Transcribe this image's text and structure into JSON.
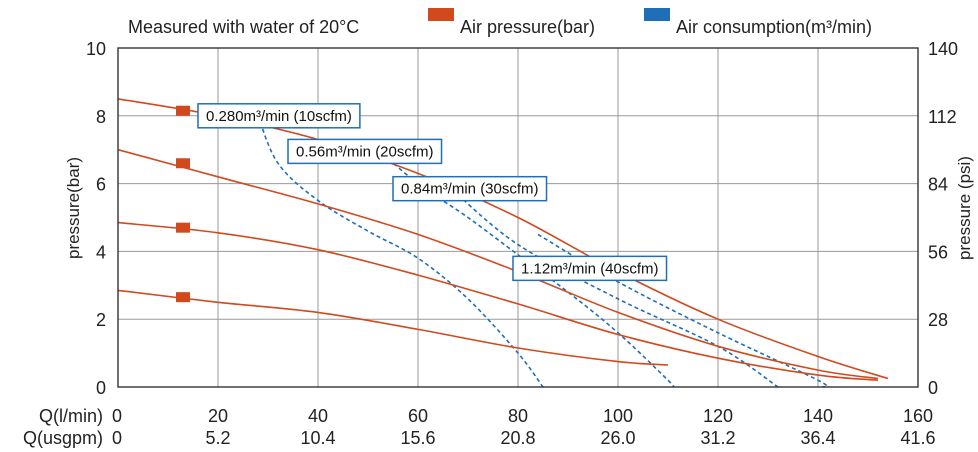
{
  "chart_data": {
    "type": "line",
    "note": "Measured with water of 20°C",
    "legend": [
      {
        "label": "Air pressure(bar)",
        "color": "#d2491e"
      },
      {
        "label": "Air consumption(m³/min)",
        "color": "#1f6fb8"
      }
    ],
    "ylabel_left": "pressure(bar)",
    "ylabel_right": "pressure (psi)",
    "xlabel_rows": [
      "Q(l/min)",
      "Q(usgpm)"
    ],
    "x_ticks_lpm": [
      0,
      20,
      40,
      60,
      80,
      100,
      120,
      140,
      160
    ],
    "x_ticks_usgpm": [
      "0",
      "5.2",
      "10.4",
      "15.6",
      "20.8",
      "26.0",
      "31.2",
      "36.4",
      "41.6"
    ],
    "y_ticks_bar": [
      0,
      2,
      4,
      6,
      8,
      10
    ],
    "y_ticks_psi": [
      0,
      28,
      56,
      84,
      112,
      140
    ],
    "xlim": [
      0,
      160
    ],
    "ylim": [
      0,
      10
    ],
    "grid": true,
    "air_pressure_series": [
      {
        "marker": [
          13,
          8.15
        ],
        "points": [
          [
            0,
            8.5
          ],
          [
            20,
            8.0
          ],
          [
            40,
            7.3
          ],
          [
            60,
            6.3
          ],
          [
            80,
            5.0
          ],
          [
            100,
            3.4
          ],
          [
            120,
            2.0
          ],
          [
            140,
            0.9
          ],
          [
            154,
            0.25
          ]
        ]
      },
      {
        "marker": [
          13,
          6.6
        ],
        "points": [
          [
            0,
            7.0
          ],
          [
            20,
            6.2
          ],
          [
            40,
            5.4
          ],
          [
            60,
            4.5
          ],
          [
            80,
            3.4
          ],
          [
            100,
            2.2
          ],
          [
            120,
            1.2
          ],
          [
            140,
            0.5
          ],
          [
            152,
            0.25
          ]
        ]
      },
      {
        "marker": [
          13,
          4.7
        ],
        "points": [
          [
            0,
            4.85
          ],
          [
            20,
            4.55
          ],
          [
            40,
            4.05
          ],
          [
            60,
            3.3
          ],
          [
            80,
            2.45
          ],
          [
            100,
            1.55
          ],
          [
            120,
            0.85
          ],
          [
            140,
            0.35
          ],
          [
            152,
            0.2
          ]
        ]
      },
      {
        "marker": [
          13,
          2.65
        ],
        "points": [
          [
            0,
            2.85
          ],
          [
            20,
            2.5
          ],
          [
            40,
            2.2
          ],
          [
            60,
            1.7
          ],
          [
            80,
            1.15
          ],
          [
            100,
            0.75
          ],
          [
            110,
            0.65
          ]
        ]
      }
    ],
    "air_consumption_series": [
      {
        "label": "0.280m³/min (10scfm)",
        "points": [
          [
            28,
            8.0
          ],
          [
            32,
            6.6
          ],
          [
            40,
            5.5
          ],
          [
            50,
            4.6
          ],
          [
            60,
            3.8
          ],
          [
            70,
            2.6
          ],
          [
            80,
            1.0
          ],
          [
            85,
            0
          ]
        ]
      },
      {
        "label": "0.56m³/min (20scfm)",
        "points": [
          [
            52,
            7.0
          ],
          [
            60,
            6.0
          ],
          [
            70,
            5.0
          ],
          [
            80,
            3.9
          ],
          [
            90,
            2.8
          ],
          [
            100,
            1.6
          ],
          [
            110,
            0.2
          ],
          [
            111,
            0
          ]
        ]
      },
      {
        "label": "0.84m³/min (30scfm)",
        "points": [
          [
            67,
            5.8
          ],
          [
            80,
            4.2
          ],
          [
            100,
            2.6
          ],
          [
            120,
            1.2
          ],
          [
            132,
            0
          ]
        ]
      },
      {
        "label": "1.12m³/min (40scfm)",
        "points": [
          [
            84,
            4.5
          ],
          [
            100,
            3.1
          ],
          [
            120,
            1.6
          ],
          [
            140,
            0.2
          ],
          [
            141,
            0
          ]
        ]
      }
    ],
    "callouts": [
      {
        "text": "0.280m³/min (10scfm)",
        "at": [
          28,
          8.0
        ],
        "box_x": 16,
        "box_y": 8.0
      },
      {
        "text": "0.56m³/min (20scfm)",
        "at": [
          52,
          7.0
        ],
        "box_x": 34,
        "box_y": 6.95
      },
      {
        "text": "0.84m³/min (30scfm)",
        "at": [
          67,
          5.8
        ],
        "box_x": 55,
        "box_y": 5.85
      },
      {
        "text": "1.12m³/min (40scfm)",
        "at": [
          84,
          4.5
        ],
        "box_x": 79,
        "box_y": 3.5
      }
    ]
  }
}
